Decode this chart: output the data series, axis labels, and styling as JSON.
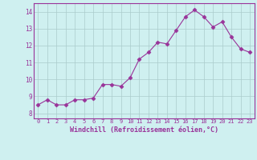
{
  "x": [
    0,
    1,
    2,
    3,
    4,
    5,
    6,
    7,
    8,
    9,
    10,
    11,
    12,
    13,
    14,
    15,
    16,
    17,
    18,
    19,
    20,
    21,
    22,
    23
  ],
  "y": [
    8.5,
    8.8,
    8.5,
    8.5,
    8.8,
    8.8,
    8.9,
    9.7,
    9.7,
    9.6,
    10.1,
    11.2,
    11.6,
    12.2,
    12.1,
    12.9,
    13.7,
    14.1,
    13.7,
    13.1,
    13.4,
    12.5,
    11.8,
    11.6
  ],
  "xlabel": "Windchill (Refroidissement éolien,°C)",
  "xticks": [
    0,
    1,
    2,
    3,
    4,
    5,
    6,
    7,
    8,
    9,
    10,
    11,
    12,
    13,
    14,
    15,
    16,
    17,
    18,
    19,
    20,
    21,
    22,
    23
  ],
  "yticks": [
    8,
    9,
    10,
    11,
    12,
    13,
    14
  ],
  "ylim": [
    7.7,
    14.5
  ],
  "xlim": [
    -0.5,
    23.5
  ],
  "line_color": "#993399",
  "marker": "D",
  "marker_size": 2.5,
  "bg_color": "#cff0f0",
  "grid_color": "#aacccc",
  "tick_color": "#993399",
  "label_color": "#993399",
  "tick_fontsize": 5.0,
  "xlabel_fontsize": 6.0
}
